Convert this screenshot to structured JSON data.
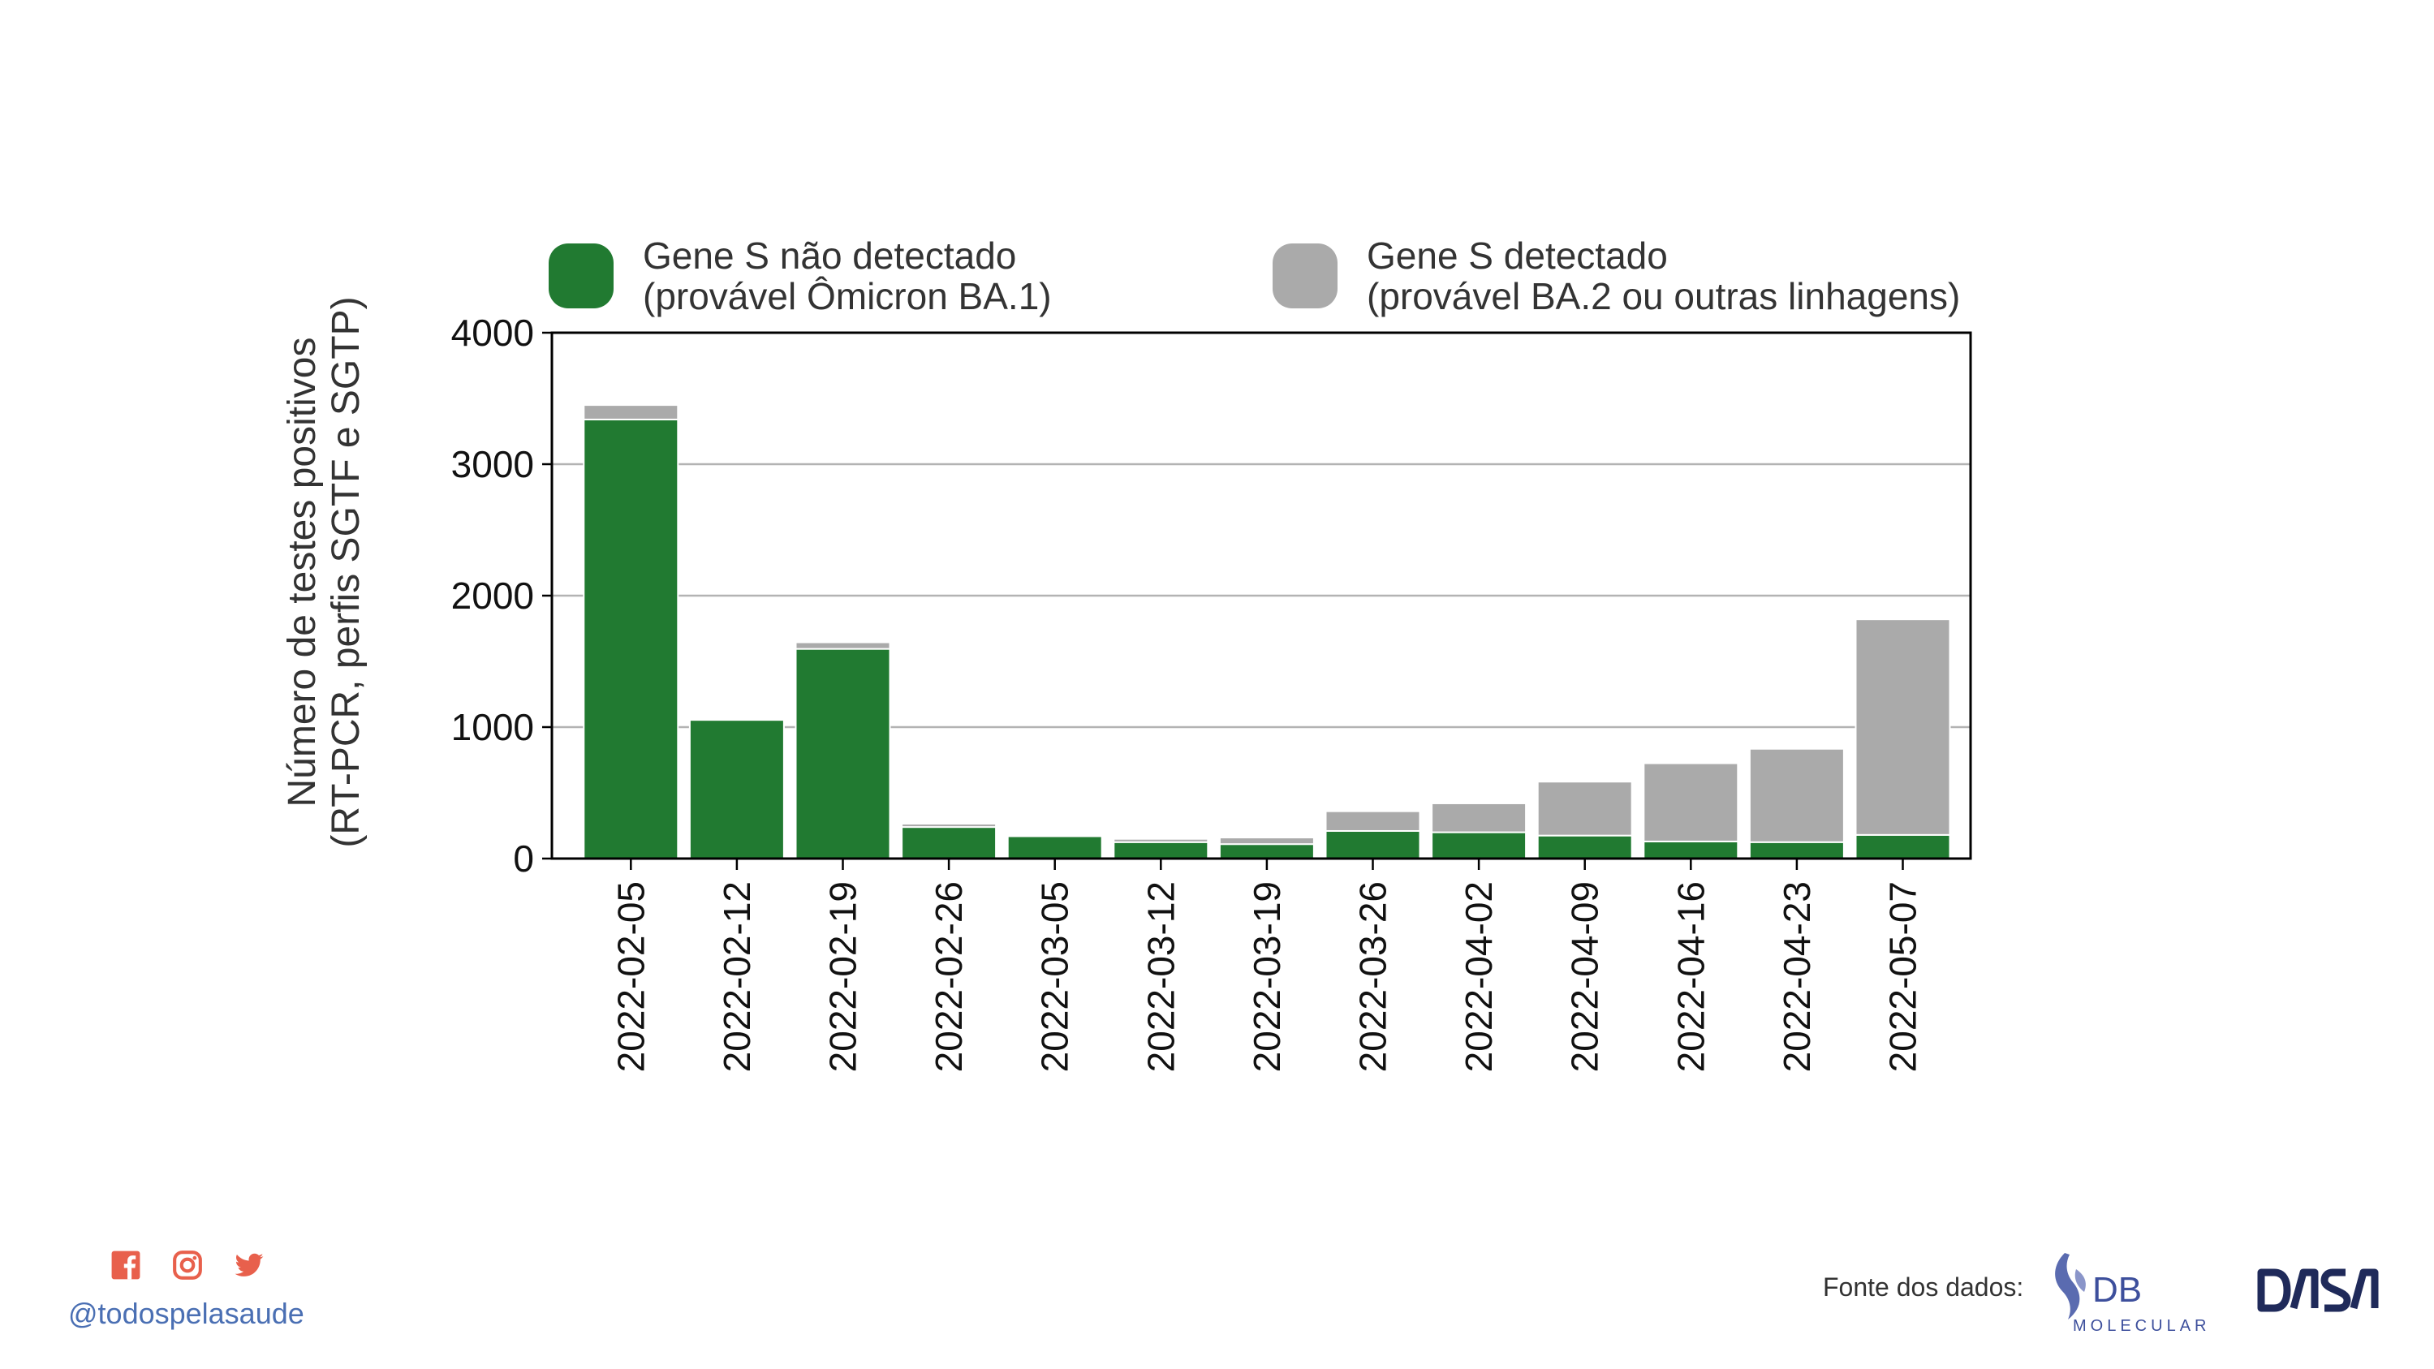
{
  "chart_data": {
    "type": "bar",
    "stacked": true,
    "categories": [
      "2022-02-05",
      "2022-02-12",
      "2022-02-19",
      "2022-02-26",
      "2022-03-05",
      "2022-03-12",
      "2022-03-19",
      "2022-03-26",
      "2022-04-02",
      "2022-04-09",
      "2022-04-16",
      "2022-04-23",
      "2022-05-07"
    ],
    "series": [
      {
        "name": "Gene S não detectado (provável Ômicron BA.1)",
        "color": "#217a31",
        "values": [
          3340,
          1055,
          1595,
          240,
          170,
          125,
          110,
          210,
          200,
          175,
          130,
          125,
          180
        ]
      },
      {
        "name": "Gene S detectado (provável BA.2 ou outras linhagens)",
        "color": "#aaaaaa",
        "values": [
          110,
          10,
          50,
          25,
          5,
          25,
          50,
          150,
          220,
          410,
          595,
          710,
          1640
        ]
      }
    ],
    "ylabel": "Número de testes positivos (RT-PCR, perfis SGTF e SGTP)",
    "ylim": [
      0,
      4000
    ],
    "yticks": [
      0,
      1000,
      2000,
      3000,
      4000
    ],
    "grid": "y",
    "legend": "top"
  },
  "legend": {
    "green": {
      "line1": "Gene S não detectado",
      "line2": "(provável Ômicron BA.1)",
      "color": "#217a31"
    },
    "grey": {
      "line1": "Gene S detectado",
      "line2": "(provável BA.2 ou outras linhagens)",
      "color": "#aaaaaa"
    }
  },
  "ylabel": {
    "line1": "Número de testes positivos",
    "line2": "(RT-PCR, perfis SGTF e SGTP)"
  },
  "footer": {
    "handle": "@todospelasaude",
    "social_icons": [
      "facebook-icon",
      "instagram-icon",
      "twitter-icon"
    ],
    "icon_color": "#e8604c",
    "source_label": "Fonte dos dados:",
    "logos": {
      "db": "DB",
      "db_sub": "MOLECULAR",
      "dasa": "DASA"
    }
  }
}
